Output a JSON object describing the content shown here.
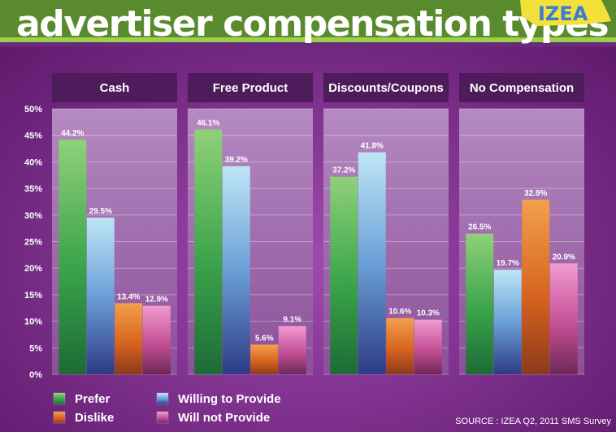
{
  "title": "advertiser compensation types",
  "logo_text": "IZEA",
  "source": "SOURCE : IZEA Q2, 2011 SMS Survey",
  "colors": {
    "prefer": "#3fae4f",
    "willing": "#7cc3e6",
    "dislike": "#e0742a",
    "will_not": "#d55a9c"
  },
  "chart_data": {
    "type": "bar",
    "ylim": [
      0,
      50
    ],
    "yticks": [
      "0%",
      "5%",
      "10%",
      "15%",
      "20%",
      "25%",
      "30%",
      "35%",
      "40%",
      "45%",
      "50%"
    ],
    "categories": [
      "Cash",
      "Free Product",
      "Discounts/Coupons",
      "No Compensation"
    ],
    "series": [
      {
        "name": "Prefer",
        "key": "prefer",
        "values": [
          44.2,
          46.1,
          37.2,
          26.5
        ],
        "labels": [
          "44.2%",
          "46.1%",
          "37.2%",
          "26.5%"
        ]
      },
      {
        "name": "Willing to Provide",
        "key": "willing",
        "values": [
          29.5,
          39.2,
          41.8,
          19.7
        ],
        "labels": [
          "29.5%",
          "39.2%",
          "41.8%",
          "19.7%"
        ]
      },
      {
        "name": "Dislike",
        "key": "dislike",
        "values": [
          13.4,
          5.6,
          10.6,
          32.9
        ],
        "labels": [
          "13.4%",
          "5.6%",
          "10.6%",
          "32.9%"
        ]
      },
      {
        "name": "Will not Provide",
        "key": "will_not",
        "values": [
          12.9,
          9.1,
          10.3,
          20.9
        ],
        "labels": [
          "12.9%",
          "9.1%",
          "10.3%",
          "20.9%"
        ]
      }
    ],
    "legend": [
      {
        "label": "Prefer",
        "key": "prefer"
      },
      {
        "label": "Dislike",
        "key": "dislike"
      },
      {
        "label": "Willing to Provide",
        "key": "willing"
      },
      {
        "label": "Will not Provide",
        "key": "will_not"
      }
    ],
    "legend_position": "bottom-left",
    "grid": true
  }
}
